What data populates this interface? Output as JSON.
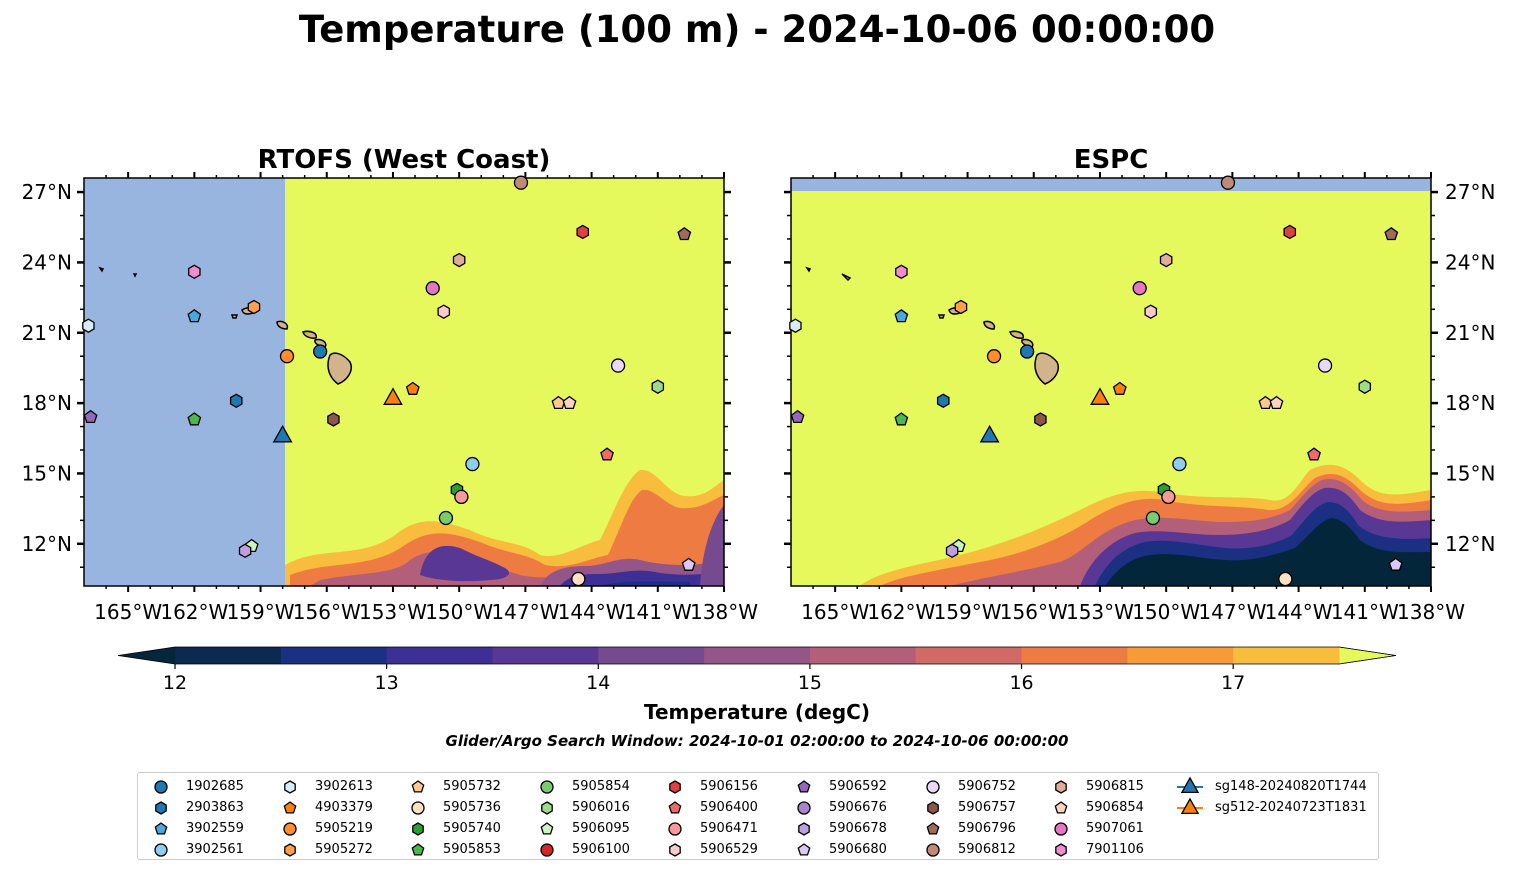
{
  "title": "Temperature (100 m) - 2024-10-06 00:00:00",
  "search_window": "Glider/Argo Search Window: 2024-10-01 02:00:00 to 2024-10-06 00:00:00",
  "colorbar": {
    "label": "Temperature (degC)",
    "ticks": [
      "12",
      "13",
      "14",
      "15",
      "16",
      "17"
    ],
    "tick_values": [
      12,
      13,
      14,
      15,
      16,
      17
    ],
    "levels": [
      11.75,
      12,
      12.5,
      13,
      13.5,
      14,
      14.5,
      15,
      15.5,
      16,
      16.5,
      17,
      17.5,
      17.75
    ],
    "colors": [
      "#03263a",
      "#0c2a4f",
      "#1b3083",
      "#3d2f93",
      "#583894",
      "#764a8e",
      "#945689",
      "#b45f79",
      "#d16a64",
      "#ee7c42",
      "#f69a3a",
      "#f8bd3c",
      "#e5f95c"
    ],
    "extend": "both"
  },
  "chart_data": [
    {
      "type": "map",
      "title": "RTOFS (West Coast)",
      "x_ticks": [
        "165°W",
        "162°W",
        "159°W",
        "156°W",
        "153°W",
        "150°W",
        "147°W",
        "144°W",
        "141°W",
        "138°W"
      ],
      "y_ticks": [
        "27°N",
        "24°N",
        "21°N",
        "18°N",
        "15°N",
        "12°N"
      ],
      "xlim": [
        -167,
        -138
      ],
      "ylim": [
        10.2,
        27.6
      ],
      "no_data_region": {
        "lon": [
          -167,
          -157.9
        ]
      }
    },
    {
      "type": "map",
      "title": "ESPC",
      "x_ticks": [
        "165°W",
        "162°W",
        "159°W",
        "156°W",
        "153°W",
        "150°W",
        "147°W",
        "144°W",
        "141°W",
        "138°W"
      ],
      "y_ticks": [
        "27°N",
        "24°N",
        "21°N",
        "18°N",
        "15°N",
        "12°N"
      ],
      "xlim": [
        -167,
        -138
      ],
      "ylim": [
        10.2,
        27.6
      ],
      "no_data_region": {
        "lat": [
          27.1,
          27.6
        ]
      }
    }
  ],
  "legend": [
    {
      "id": "1902685",
      "marker": "circle",
      "color": "#1f77b4",
      "lon": -156.3,
      "lat": 20.2
    },
    {
      "id": "2903863",
      "marker": "hexagon",
      "color": "#1f77b4",
      "lon": -160.1,
      "lat": 18.1
    },
    {
      "id": "3902559",
      "marker": "pentagon",
      "color": "#4aa7e0",
      "lon": -162.0,
      "lat": 21.7
    },
    {
      "id": "3902561",
      "marker": "circle",
      "color": "#8fcdf0",
      "lon": -149.4,
      "lat": 15.4
    },
    {
      "id": "3902613",
      "marker": "hexagon",
      "color": "#d6ecf8",
      "lon": -166.8,
      "lat": 21.3
    },
    {
      "id": "4903379",
      "marker": "pentagon",
      "color": "#ff7f0e",
      "lon": -152.1,
      "lat": 18.6
    },
    {
      "id": "5905219",
      "marker": "circle",
      "color": "#ff8c2e",
      "lon": -157.8,
      "lat": 20.0
    },
    {
      "id": "5905272",
      "marker": "hexagon",
      "color": "#ffa04d",
      "lon": -159.3,
      "lat": 22.1
    },
    {
      "id": "5905732",
      "marker": "pentagon",
      "color": "#ffc890",
      "lon": -145.5,
      "lat": 18.0
    },
    {
      "id": "5905736",
      "marker": "circle",
      "color": "#ffe0c0",
      "lon": -144.6,
      "lat": 10.5
    },
    {
      "id": "5905740",
      "marker": "hexagon",
      "color": "#2ca02c",
      "lon": -150.1,
      "lat": 14.3
    },
    {
      "id": "5905853",
      "marker": "pentagon",
      "color": "#4cb84c",
      "lon": -162.0,
      "lat": 17.3
    },
    {
      "id": "5905854",
      "marker": "circle",
      "color": "#79cc6e",
      "lon": -150.6,
      "lat": 13.1
    },
    {
      "id": "5906016",
      "marker": "hexagon",
      "color": "#9edc8a",
      "lon": -141.0,
      "lat": 18.7
    },
    {
      "id": "6095",
      "display_id": "5906095",
      "marker": "pentagon",
      "color": "#cdf5c0",
      "lon": -159.4,
      "lat": 11.9
    },
    {
      "id": "5906100",
      "marker": "circle",
      "color": "#d62728",
      "lon": null,
      "lat": null
    },
    {
      "id": "5906156",
      "marker": "hexagon",
      "color": "#e04040",
      "lon": -144.4,
      "lat": 25.3
    },
    {
      "id": "5906400",
      "marker": "pentagon",
      "color": "#ef6b6b",
      "lon": -143.3,
      "lat": 15.8
    },
    {
      "id": "5906471",
      "marker": "circle",
      "color": "#f89a9a",
      "lon": -149.9,
      "lat": 14.0
    },
    {
      "id": "5906529",
      "marker": "hexagon",
      "color": "#fccaca",
      "lon": -150.7,
      "lat": 21.9
    },
    {
      "id": "5906592",
      "marker": "pentagon",
      "color": "#9467bd",
      "lon": -166.7,
      "lat": 17.4
    },
    {
      "id": "5906676",
      "marker": "circle",
      "color": "#a983cf",
      "lon": null,
      "lat": null
    },
    {
      "id": "5906678",
      "marker": "hexagon",
      "color": "#bf9fe0",
      "lon": -159.7,
      "lat": 11.7
    },
    {
      "id": "5906680",
      "marker": "pentagon",
      "color": "#dcc8f2",
      "lon": -139.6,
      "lat": 11.1
    },
    {
      "id": "5906752",
      "marker": "circle",
      "color": "#ead8f8",
      "lon": -142.8,
      "lat": 19.6
    },
    {
      "id": "5906757",
      "marker": "hexagon",
      "color": "#8c564b",
      "lon": -155.7,
      "lat": 17.3
    },
    {
      "id": "5906796",
      "marker": "pentagon",
      "color": "#9f6a5a",
      "lon": -139.8,
      "lat": 25.2
    },
    {
      "id": "5906812",
      "marker": "circle",
      "color": "#c08a78",
      "lon": -147.2,
      "lat": 27.4
    },
    {
      "id": "5906815",
      "marker": "hexagon",
      "color": "#e0ae98",
      "lon": -150.0,
      "lat": 24.1
    },
    {
      "id": "5906854",
      "marker": "pentagon",
      "color": "#fcd2c0",
      "lon": -145.0,
      "lat": 18.0
    },
    {
      "id": "5907061",
      "marker": "circle",
      "color": "#e377c2",
      "lon": -151.2,
      "lat": 22.9
    },
    {
      "id": "7901106",
      "marker": "hexagon",
      "color": "#f08cd2",
      "lon": -162.0,
      "lat": 23.6
    },
    {
      "id": "sg148-20240820T1744",
      "marker": "triangle",
      "line": true,
      "color": "#1f77b4",
      "lon": -158.0,
      "lat": 16.6
    },
    {
      "id": "sg512-20240723T1831",
      "marker": "triangle",
      "line": true,
      "color": "#ff7f0e",
      "lon": -153.0,
      "lat": 18.2
    }
  ]
}
